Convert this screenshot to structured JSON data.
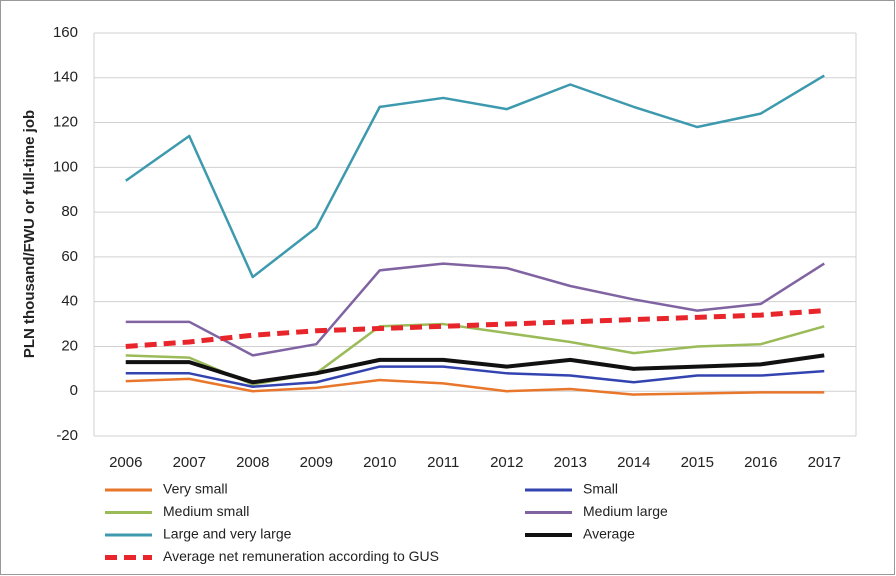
{
  "chart_data": {
    "type": "line",
    "y_label": "PLN thousand/FWU or full-time job",
    "categories": [
      "2006",
      "2007",
      "2008",
      "2009",
      "2010",
      "2011",
      "2012",
      "2013",
      "2014",
      "2015",
      "2016",
      "2017"
    ],
    "series": [
      {
        "name": "Very small",
        "color": "#e8762b",
        "values": [
          4.5,
          5.5,
          0,
          1.5,
          5,
          3.5,
          0,
          1,
          -1.5,
          -1,
          -0.5,
          -0.5
        ]
      },
      {
        "name": "Small",
        "color": "#3344b0",
        "values": [
          8,
          8,
          2,
          4,
          11,
          11,
          8,
          7,
          4,
          7,
          7,
          9
        ]
      },
      {
        "name": "Medium small",
        "color": "#9bbb59",
        "values": [
          16,
          15,
          3,
          8,
          29,
          30,
          26,
          22,
          17,
          20,
          21,
          29
        ]
      },
      {
        "name": "Medium large",
        "color": "#8064a2",
        "values": [
          31,
          31,
          16,
          21,
          54,
          57,
          55,
          47,
          41,
          36,
          39,
          57
        ]
      },
      {
        "name": "Large and very large",
        "color": "#3d9aae",
        "values": [
          94,
          114,
          51,
          73,
          127,
          131,
          126,
          137,
          127,
          118,
          124,
          141
        ]
      },
      {
        "name": "Average",
        "color": "#111111",
        "width": 4,
        "values": [
          13,
          13,
          4,
          8,
          14,
          14,
          11,
          14,
          10,
          11,
          12,
          16
        ]
      },
      {
        "name": "Average net remuneration according to GUS",
        "color": "#e8252b",
        "dashed": true,
        "width": 5,
        "values": [
          20,
          22,
          25,
          27,
          28,
          29,
          30,
          31,
          32,
          33,
          34,
          36
        ]
      }
    ],
    "ylim": [
      -20,
      160
    ],
    "yticks": [
      -20,
      0,
      20,
      40,
      60,
      80,
      100,
      120,
      140,
      160
    ],
    "grid": true
  }
}
